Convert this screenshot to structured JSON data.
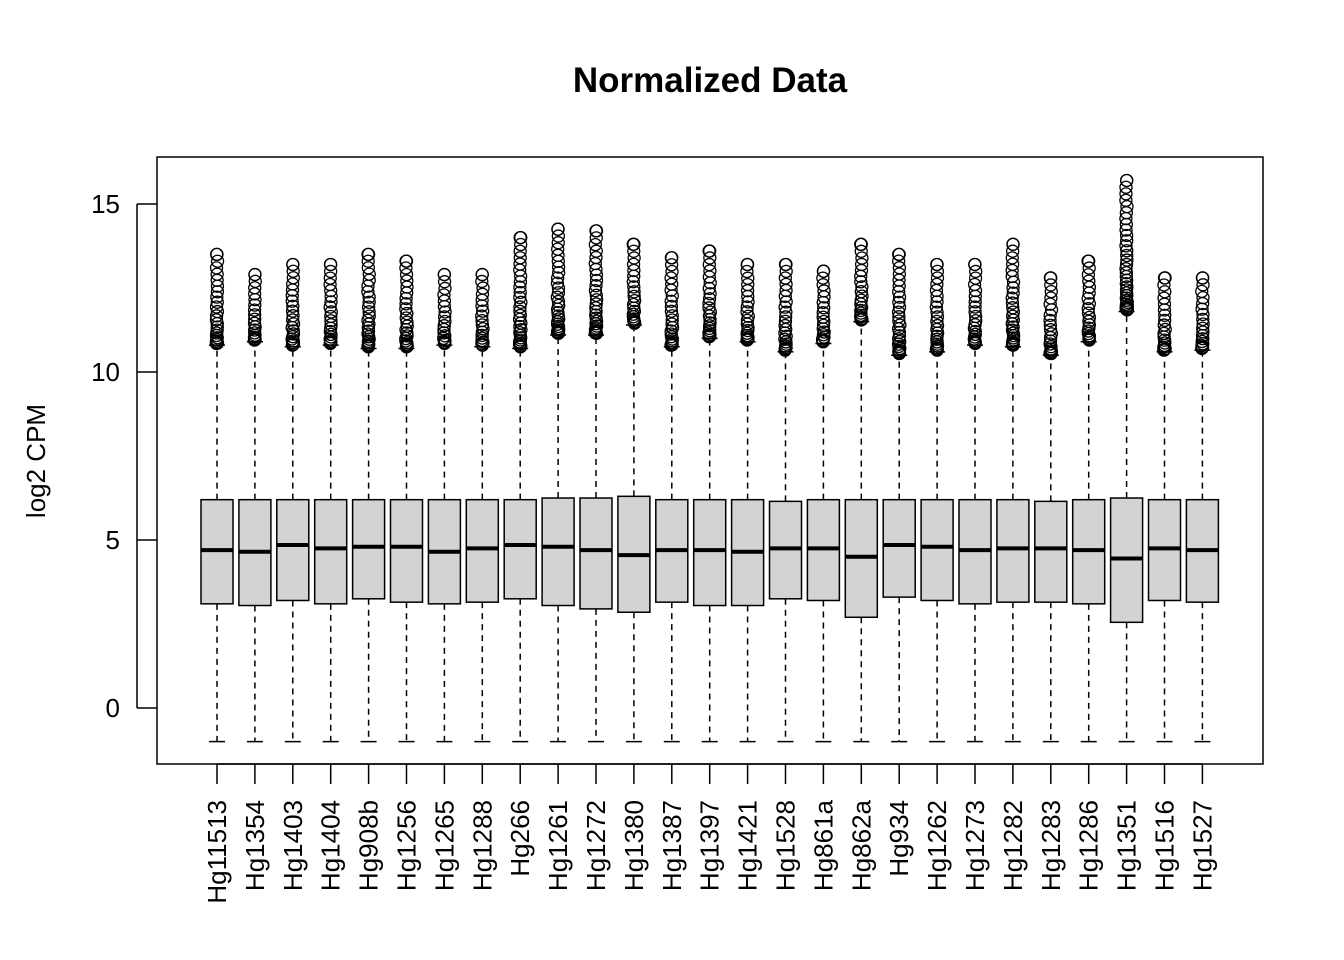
{
  "chart_data": {
    "type": "boxplot",
    "title": "Normalized Data",
    "xlabel": "",
    "ylabel": "log2 CPM",
    "ylim": [
      -1.6,
      16.5
    ],
    "yticks": [
      0,
      5,
      10,
      15
    ],
    "grid": false,
    "legend": "none",
    "colors": {
      "box_fill": "#d3d3d3",
      "stroke": "#000000"
    },
    "categories": [
      "Hg11513",
      "Hg1354",
      "Hg1403",
      "Hg1404",
      "Hg908b",
      "Hg1256",
      "Hg1265",
      "Hg1288",
      "Hg266",
      "Hg1261",
      "Hg1272",
      "Hg1380",
      "Hg1387",
      "Hg1397",
      "Hg1421",
      "Hg1528",
      "Hg861a",
      "Hg862a",
      "Hg934",
      "Hg1262",
      "Hg1273",
      "Hg1282",
      "Hg1283",
      "Hg1286",
      "Hg1351",
      "Hg1516",
      "Hg1527"
    ],
    "boxes": [
      {
        "min": -1.0,
        "q1": 3.1,
        "median": 4.7,
        "q3": 6.2,
        "whisker_high": 10.8,
        "outlier_max": 13.5
      },
      {
        "min": -1.0,
        "q1": 3.05,
        "median": 4.65,
        "q3": 6.2,
        "whisker_high": 10.9,
        "outlier_max": 12.9
      },
      {
        "min": -1.0,
        "q1": 3.2,
        "median": 4.85,
        "q3": 6.2,
        "whisker_high": 10.75,
        "outlier_max": 13.2
      },
      {
        "min": -1.0,
        "q1": 3.1,
        "median": 4.75,
        "q3": 6.2,
        "whisker_high": 10.8,
        "outlier_max": 13.2
      },
      {
        "min": -1.0,
        "q1": 3.25,
        "median": 4.8,
        "q3": 6.2,
        "whisker_high": 10.7,
        "outlier_max": 13.5
      },
      {
        "min": -1.0,
        "q1": 3.15,
        "median": 4.8,
        "q3": 6.2,
        "whisker_high": 10.7,
        "outlier_max": 13.3
      },
      {
        "min": -1.0,
        "q1": 3.1,
        "median": 4.65,
        "q3": 6.2,
        "whisker_high": 10.8,
        "outlier_max": 12.9
      },
      {
        "min": -1.0,
        "q1": 3.15,
        "median": 4.75,
        "q3": 6.2,
        "whisker_high": 10.75,
        "outlier_max": 12.9
      },
      {
        "min": -1.0,
        "q1": 3.25,
        "median": 4.85,
        "q3": 6.2,
        "whisker_high": 10.7,
        "outlier_max": 14.0
      },
      {
        "min": -1.0,
        "q1": 3.05,
        "median": 4.8,
        "q3": 6.25,
        "whisker_high": 11.1,
        "outlier_max": 14.25
      },
      {
        "min": -1.0,
        "q1": 2.95,
        "median": 4.7,
        "q3": 6.25,
        "whisker_high": 11.1,
        "outlier_max": 14.2
      },
      {
        "min": -1.0,
        "q1": 2.85,
        "median": 4.55,
        "q3": 6.3,
        "whisker_high": 11.4,
        "outlier_max": 13.8
      },
      {
        "min": -1.0,
        "q1": 3.15,
        "median": 4.7,
        "q3": 6.2,
        "whisker_high": 10.75,
        "outlier_max": 13.4
      },
      {
        "min": -1.0,
        "q1": 3.05,
        "median": 4.7,
        "q3": 6.2,
        "whisker_high": 11.0,
        "outlier_max": 13.6
      },
      {
        "min": -1.0,
        "q1": 3.05,
        "median": 4.65,
        "q3": 6.2,
        "whisker_high": 10.9,
        "outlier_max": 13.2
      },
      {
        "min": -1.0,
        "q1": 3.25,
        "median": 4.75,
        "q3": 6.15,
        "whisker_high": 10.6,
        "outlier_max": 13.2
      },
      {
        "min": -1.0,
        "q1": 3.2,
        "median": 4.75,
        "q3": 6.2,
        "whisker_high": 10.85,
        "outlier_max": 13.0
      },
      {
        "min": -1.0,
        "q1": 2.7,
        "median": 4.5,
        "q3": 6.2,
        "whisker_high": 11.5,
        "outlier_max": 13.8
      },
      {
        "min": -1.0,
        "q1": 3.3,
        "median": 4.85,
        "q3": 6.2,
        "whisker_high": 10.5,
        "outlier_max": 13.5
      },
      {
        "min": -1.0,
        "q1": 3.2,
        "median": 4.8,
        "q3": 6.2,
        "whisker_high": 10.6,
        "outlier_max": 13.2
      },
      {
        "min": -1.0,
        "q1": 3.1,
        "median": 4.7,
        "q3": 6.2,
        "whisker_high": 10.8,
        "outlier_max": 13.2
      },
      {
        "min": -1.0,
        "q1": 3.15,
        "median": 4.75,
        "q3": 6.2,
        "whisker_high": 10.75,
        "outlier_max": 13.8
      },
      {
        "min": -1.0,
        "q1": 3.15,
        "median": 4.75,
        "q3": 6.15,
        "whisker_high": 10.5,
        "outlier_max": 12.8
      },
      {
        "min": -1.0,
        "q1": 3.1,
        "median": 4.7,
        "q3": 6.2,
        "whisker_high": 10.9,
        "outlier_max": 13.3
      },
      {
        "min": -1.0,
        "q1": 2.55,
        "median": 4.45,
        "q3": 6.25,
        "whisker_high": 11.8,
        "outlier_max": 15.7
      },
      {
        "min": -1.0,
        "q1": 3.2,
        "median": 4.75,
        "q3": 6.2,
        "whisker_high": 10.6,
        "outlier_max": 12.8
      },
      {
        "min": -1.0,
        "q1": 3.15,
        "median": 4.7,
        "q3": 6.2,
        "whisker_high": 10.65,
        "outlier_max": 12.8
      }
    ]
  }
}
